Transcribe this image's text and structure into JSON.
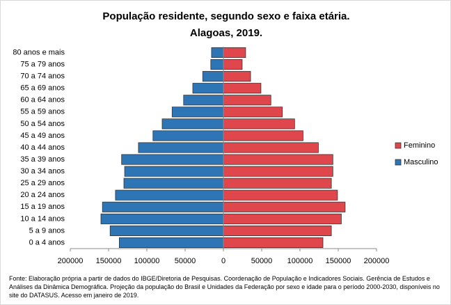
{
  "chart_data": {
    "type": "pyramid",
    "title": "População residente, segundo sexo e faixa etária.",
    "subtitle": "Alagoas, 2019.",
    "categories": [
      "80 anos e mais",
      "75 a 79 anos",
      "70 a 74 anos",
      "65 a 69 anos",
      "60 a 64 anos",
      "55 a 59 anos",
      "50 a 54 anos",
      "45 a 49 anos",
      "40 a 44 anos",
      "35 a 39 anos",
      "30 a 34 anos",
      "25 a 29 anos",
      "20 a 24 anos",
      "15 a 19 anos",
      "10 a 14 anos",
      "5 a 9 anos",
      "0 a 4 anos"
    ],
    "series": [
      {
        "name": "Feminino",
        "color": "#e0474c",
        "values": [
          29000,
          24500,
          35500,
          49000,
          62000,
          77000,
          93000,
          104000,
          124000,
          143000,
          143000,
          141000,
          149000,
          159000,
          154000,
          141000,
          130000
        ]
      },
      {
        "name": "Masculino",
        "color": "#2e75b6",
        "values": [
          -15500,
          -16500,
          -27000,
          -40000,
          -52000,
          -67000,
          -80000,
          -92000,
          -111000,
          -133000,
          -129000,
          -130000,
          -141000,
          -158000,
          -160000,
          -148000,
          -136000
        ]
      }
    ],
    "xlim": [
      -200000,
      200000
    ],
    "xticks": [
      {
        "value": -200000,
        "label": "200000"
      },
      {
        "value": -150000,
        "label": "150000"
      },
      {
        "value": -100000,
        "label": "100000"
      },
      {
        "value": -50000,
        "label": "50000"
      },
      0,
      50000,
      100000,
      150000,
      200000
    ],
    "legend": "right",
    "note": "Fonte:  Elaboração própria a partir de dados do  IBGE/Diretoria de Pesquisas. Coordenação de População e Indicadores Sociais. Gerência de Estudos e Análises da Dinâmica Demográfica. Projeção da população do Brasil e Unidades da Federação por sexo e idade para o período 2000-2030, disponíveis no site do DATASUS. Acesso em  janeiro de 2019."
  }
}
